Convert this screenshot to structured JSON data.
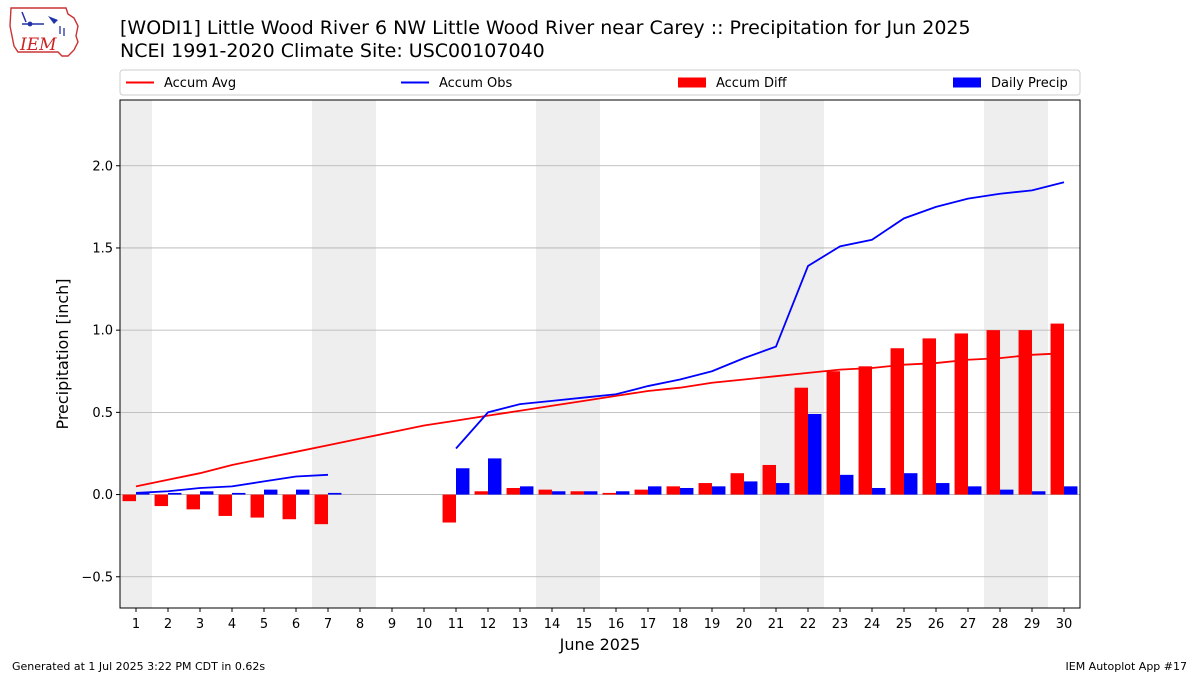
{
  "title_line1": "[WODI1] Little Wood River 6 NW Little Wood River near Carey :: Precipitation for Jun 2025",
  "title_line2": "NCEI 1991-2020 Climate Site: USC00107040",
  "logo_text": "IEM",
  "footer_left": "Generated at 1 Jul 2025 3:22 PM CDT in 0.62s",
  "footer_right": "IEM Autoplot App #17",
  "colors": {
    "accum_avg": "#ff0000",
    "accum_obs": "#0000ff",
    "accum_diff": "#ff0000",
    "daily_precip": "#0000ff",
    "weekend_shade": "#eeeeee",
    "grid": "#b0b0b0"
  },
  "chart_data": {
    "type": "bar",
    "xlabel": "June 2025",
    "ylabel": "Precipitation [inch]",
    "ylim": [
      -0.69,
      2.4
    ],
    "xlim": [
      0.5,
      30.5
    ],
    "yticks": [
      -0.5,
      0.0,
      0.5,
      1.0,
      1.5,
      2.0
    ],
    "ytick_labels": [
      "−0.5",
      "0.0",
      "0.5",
      "1.0",
      "1.5",
      "2.0"
    ],
    "grid": "horizontal",
    "legend_position": "top",
    "categories": [
      "1",
      "2",
      "3",
      "4",
      "5",
      "6",
      "7",
      "8",
      "9",
      "10",
      "11",
      "12",
      "13",
      "14",
      "15",
      "16",
      "17",
      "18",
      "19",
      "20",
      "21",
      "22",
      "23",
      "24",
      "25",
      "26",
      "27",
      "28",
      "29",
      "30"
    ],
    "weekend_shading": [
      [
        0.5,
        1.5
      ],
      [
        6.5,
        8.5
      ],
      [
        13.5,
        15.5
      ],
      [
        20.5,
        22.5
      ],
      [
        27.5,
        29.5
      ]
    ],
    "series": [
      {
        "name": "Accum Avg",
        "kind": "line",
        "x": [
          1,
          2,
          3,
          4,
          5,
          6,
          7,
          8,
          9,
          10,
          11,
          12,
          13,
          14,
          15,
          16,
          17,
          18,
          19,
          20,
          21,
          22,
          23,
          24,
          25,
          26,
          27,
          28,
          29,
          30
        ],
        "values": [
          0.05,
          0.09,
          0.13,
          0.18,
          0.22,
          0.26,
          0.3,
          0.34,
          0.38,
          0.42,
          0.45,
          0.48,
          0.51,
          0.54,
          0.57,
          0.6,
          0.63,
          0.65,
          0.68,
          0.7,
          0.72,
          0.74,
          0.76,
          0.77,
          0.79,
          0.8,
          0.82,
          0.83,
          0.85,
          0.86
        ]
      },
      {
        "name": "Accum Obs",
        "kind": "line",
        "x": [
          1,
          2,
          3,
          4,
          5,
          6,
          7,
          11,
          12,
          13,
          14,
          15,
          16,
          17,
          18,
          19,
          20,
          21,
          22,
          23,
          24,
          25,
          26,
          27,
          28,
          29,
          30
        ],
        "values": [
          0.01,
          0.02,
          0.04,
          0.05,
          0.08,
          0.11,
          0.12,
          0.28,
          0.5,
          0.55,
          0.57,
          0.59,
          0.61,
          0.66,
          0.7,
          0.75,
          0.83,
          0.9,
          1.39,
          1.51,
          1.55,
          1.68,
          1.75,
          1.8,
          1.83,
          1.85,
          1.9
        ]
      },
      {
        "name": "Accum Diff",
        "kind": "bar",
        "x": [
          1,
          2,
          3,
          4,
          5,
          6,
          7,
          11,
          12,
          13,
          14,
          15,
          16,
          17,
          18,
          19,
          20,
          21,
          22,
          23,
          24,
          25,
          26,
          27,
          28,
          29,
          30
        ],
        "values": [
          -0.04,
          -0.07,
          -0.09,
          -0.13,
          -0.14,
          -0.15,
          -0.18,
          -0.17,
          0.02,
          0.04,
          0.03,
          0.02,
          0.01,
          0.03,
          0.05,
          0.07,
          0.13,
          0.18,
          0.65,
          0.75,
          0.78,
          0.89,
          0.95,
          0.98,
          1.0,
          1.0,
          1.04
        ]
      },
      {
        "name": "Daily Precip",
        "kind": "bar",
        "x": [
          1,
          2,
          3,
          4,
          5,
          6,
          7,
          11,
          12,
          13,
          14,
          15,
          16,
          17,
          18,
          19,
          20,
          21,
          22,
          23,
          24,
          25,
          26,
          27,
          28,
          29,
          30
        ],
        "values": [
          0.01,
          0.01,
          0.02,
          0.01,
          0.03,
          0.03,
          0.01,
          0.16,
          0.22,
          0.05,
          0.02,
          0.02,
          0.02,
          0.05,
          0.04,
          0.05,
          0.08,
          0.07,
          0.49,
          0.12,
          0.04,
          0.13,
          0.07,
          0.05,
          0.03,
          0.02,
          0.05
        ]
      }
    ]
  }
}
